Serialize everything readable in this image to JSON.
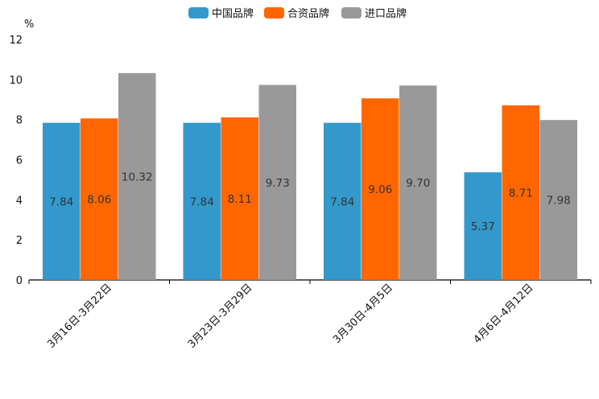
{
  "chart_data": {
    "type": "bar",
    "title": "",
    "xlabel": "",
    "ylabel": "%",
    "ylim": [
      0,
      12
    ],
    "yticks": [
      "0",
      "2",
      "4",
      "6",
      "8",
      "10",
      "12"
    ],
    "categories": [
      "3月16日-3月22日",
      "3月23日-3月29日",
      "3月30日-4月5日",
      "4月6日-4月12日"
    ],
    "series": [
      {
        "name": "中国品牌",
        "color": "#3399cc",
        "values": [
          7.84,
          7.84,
          7.84,
          5.37
        ],
        "labels": [
          "7.84",
          "7.84",
          "7.84",
          "5.37"
        ]
      },
      {
        "name": "合资品牌",
        "color": "#ff6600",
        "values": [
          8.06,
          8.11,
          9.06,
          8.71
        ],
        "labels": [
          "8.06",
          "8.11",
          "9.06",
          "8.71"
        ]
      },
      {
        "name": "进口品牌",
        "color": "#999999",
        "values": [
          10.32,
          9.73,
          9.7,
          7.98
        ],
        "labels": [
          "10.32",
          "9.73",
          "9.70",
          "7.98"
        ]
      }
    ],
    "legend_position": "top-center",
    "grid": false
  }
}
